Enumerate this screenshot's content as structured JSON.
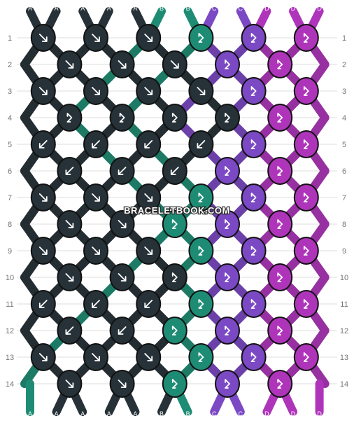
{
  "watermark": "BRACELETBOOK.COM",
  "colors": {
    "A": "#263238",
    "B": "#1e8c74",
    "C": "#7b49c4",
    "D": "#ae35ba"
  },
  "top_labels": [
    "A",
    "A",
    "A",
    "A",
    "A",
    "B",
    "B",
    "C",
    "C",
    "D",
    "D",
    "D"
  ],
  "bottom_labels": [
    "A",
    "A",
    "A",
    "A",
    "A",
    "B",
    "B",
    "C",
    "C",
    "D",
    "D",
    "D"
  ],
  "rows": [
    {
      "number": "1",
      "knots": [
        {
          "color": "A",
          "arrow": "down-right"
        },
        {
          "color": "A",
          "arrow": "down-right"
        },
        {
          "color": "A",
          "arrow": "down-right"
        },
        {
          "color": "B",
          "arrow": "forward-backward"
        },
        {
          "color": "C",
          "arrow": "forward-backward"
        },
        {
          "color": "D",
          "arrow": "forward-backward"
        }
      ]
    },
    {
      "number": "2",
      "knots": [
        {
          "color": "A",
          "arrow": "down-right"
        },
        {
          "color": "A",
          "arrow": "down-right"
        },
        {
          "color": "A",
          "arrow": "down-right"
        },
        {
          "color": "C",
          "arrow": "forward-backward"
        },
        {
          "color": "D",
          "arrow": "forward-backward"
        }
      ]
    },
    {
      "number": "3",
      "knots": [
        {
          "color": "A",
          "arrow": "down-right"
        },
        {
          "color": "A",
          "arrow": "down-right"
        },
        {
          "color": "A",
          "arrow": "down-right"
        },
        {
          "color": "A",
          "arrow": "down-right"
        },
        {
          "color": "C",
          "arrow": "forward-backward"
        },
        {
          "color": "D",
          "arrow": "forward-backward"
        }
      ]
    },
    {
      "number": "4",
      "knots": [
        {
          "color": "A",
          "arrow": "forward-backward"
        },
        {
          "color": "A",
          "arrow": "forward-backward"
        },
        {
          "color": "A",
          "arrow": "forward-backward"
        },
        {
          "color": "A",
          "arrow": "forward-backward"
        },
        {
          "color": "D",
          "arrow": "forward-backward"
        }
      ]
    },
    {
      "number": "5",
      "knots": [
        {
          "color": "A",
          "arrow": "down-left"
        },
        {
          "color": "A",
          "arrow": "down-left"
        },
        {
          "color": "A",
          "arrow": "down-left"
        },
        {
          "color": "A",
          "arrow": "down-left"
        },
        {
          "color": "C",
          "arrow": "forward-backward"
        },
        {
          "color": "D",
          "arrow": "forward-backward"
        }
      ]
    },
    {
      "number": "6",
      "knots": [
        {
          "color": "A",
          "arrow": "down-left"
        },
        {
          "color": "A",
          "arrow": "down-left"
        },
        {
          "color": "A",
          "arrow": "down-left"
        },
        {
          "color": "C",
          "arrow": "forward-backward"
        },
        {
          "color": "D",
          "arrow": "forward-backward"
        }
      ]
    },
    {
      "number": "7",
      "knots": [
        {
          "color": "A",
          "arrow": "down-right"
        },
        {
          "color": "A",
          "arrow": "down-right"
        },
        {
          "color": "A",
          "arrow": "down-right"
        },
        {
          "color": "B",
          "arrow": "forward-backward"
        },
        {
          "color": "C",
          "arrow": "forward-backward"
        },
        {
          "color": "D",
          "arrow": "forward-backward"
        }
      ]
    },
    {
      "number": "8",
      "knots": [
        {
          "color": "A",
          "arrow": "down-right"
        },
        {
          "color": "A",
          "arrow": "down-right"
        },
        {
          "color": "B",
          "arrow": "forward-backward"
        },
        {
          "color": "C",
          "arrow": "forward-backward"
        },
        {
          "color": "D",
          "arrow": "forward-backward"
        }
      ]
    },
    {
      "number": "9",
      "knots": [
        {
          "color": "A",
          "arrow": "down-right"
        },
        {
          "color": "A",
          "arrow": "down-right"
        },
        {
          "color": "A",
          "arrow": "down-right"
        },
        {
          "color": "B",
          "arrow": "forward-backward"
        },
        {
          "color": "C",
          "arrow": "forward-backward"
        },
        {
          "color": "D",
          "arrow": "forward-backward"
        }
      ]
    },
    {
      "number": "10",
      "knots": [
        {
          "color": "A",
          "arrow": "down-right"
        },
        {
          "color": "A",
          "arrow": "down-right"
        },
        {
          "color": "A",
          "arrow": "forward-backward"
        },
        {
          "color": "C",
          "arrow": "forward-backward"
        },
        {
          "color": "D",
          "arrow": "forward-backward"
        }
      ]
    },
    {
      "number": "11",
      "knots": [
        {
          "color": "A",
          "arrow": "down-left"
        },
        {
          "color": "A",
          "arrow": "down-left"
        },
        {
          "color": "A",
          "arrow": "down-left"
        },
        {
          "color": "B",
          "arrow": "forward-backward"
        },
        {
          "color": "C",
          "arrow": "forward-backward"
        },
        {
          "color": "D",
          "arrow": "forward-backward"
        }
      ]
    },
    {
      "number": "12",
      "knots": [
        {
          "color": "A",
          "arrow": "down-left"
        },
        {
          "color": "A",
          "arrow": "down-left"
        },
        {
          "color": "B",
          "arrow": "forward-backward"
        },
        {
          "color": "C",
          "arrow": "forward-backward"
        },
        {
          "color": "D",
          "arrow": "forward-backward"
        }
      ]
    },
    {
      "number": "13",
      "knots": [
        {
          "color": "A",
          "arrow": "down-right"
        },
        {
          "color": "A",
          "arrow": "down-right"
        },
        {
          "color": "A",
          "arrow": "down-right"
        },
        {
          "color": "B",
          "arrow": "forward-backward"
        },
        {
          "color": "C",
          "arrow": "forward-backward"
        },
        {
          "color": "D",
          "arrow": "forward-backward"
        }
      ]
    },
    {
      "number": "14",
      "knots": [
        {
          "color": "A",
          "arrow": "down-right"
        },
        {
          "color": "A",
          "arrow": "down-right"
        },
        {
          "color": "B",
          "arrow": "forward-backward"
        },
        {
          "color": "C",
          "arrow": "forward-backward"
        },
        {
          "color": "D",
          "arrow": "forward-backward"
        }
      ]
    }
  ]
}
